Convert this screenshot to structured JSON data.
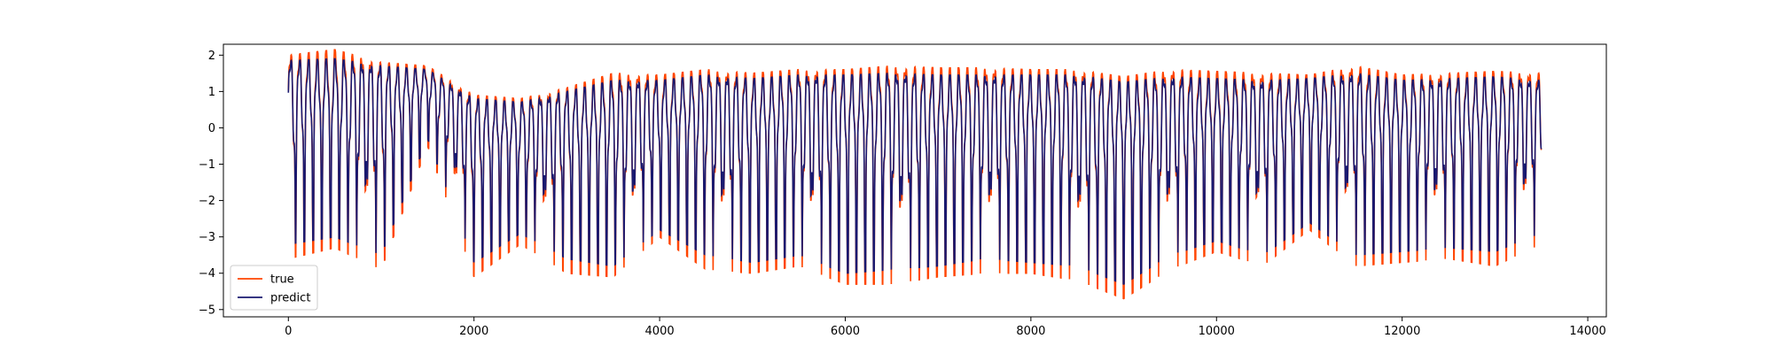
{
  "chart_data": {
    "type": "line",
    "title": "",
    "xlabel": "",
    "ylabel": "",
    "xlim": [
      -700,
      14200
    ],
    "ylim": [
      -5.2,
      2.3
    ],
    "x_ticks": [
      0,
      2000,
      4000,
      6000,
      8000,
      10000,
      12000,
      14000
    ],
    "x_tick_labels": [
      "0",
      "2000",
      "4000",
      "6000",
      "8000",
      "10000",
      "12000",
      "14000"
    ],
    "y_ticks": [
      2,
      1,
      0,
      -1,
      -2,
      -3,
      -4,
      -5
    ],
    "y_tick_labels": [
      "2",
      "1",
      "0",
      "−1",
      "−2",
      "−3",
      "−4",
      "−5"
    ],
    "grid": false,
    "legend_position": "lower-left",
    "series_approximation": "each series is summarised by the lower (min) and upper (max) envelope of its values over consecutive x-segments, read from the figure",
    "x": [
      0,
      500,
      1000,
      1500,
      2000,
      2500,
      3000,
      3500,
      4000,
      4500,
      5000,
      5500,
      6000,
      6500,
      7000,
      7500,
      8000,
      8500,
      9000,
      9500,
      10000,
      10500,
      11000,
      11500,
      12000,
      12500,
      13000,
      13500
    ],
    "series": [
      {
        "name": "true",
        "color": "#ff4500",
        "lower": [
          -3.6,
          -3.3,
          -3.9,
          -0.5,
          -4.1,
          -3.2,
          -4.0,
          -4.1,
          -3.0,
          -3.9,
          -4.0,
          -3.8,
          -4.3,
          -4.3,
          -4.1,
          -4.0,
          -4.0,
          -4.2,
          -4.7,
          -3.9,
          -3.4,
          -3.8,
          -2.8,
          -3.8,
          -3.7,
          -3.6,
          -3.8,
          -3.2
        ],
        "upper": [
          2.0,
          2.15,
          1.8,
          1.7,
          0.9,
          0.8,
          1.1,
          1.5,
          1.45,
          1.6,
          1.5,
          1.6,
          1.6,
          1.7,
          1.65,
          1.65,
          1.6,
          1.6,
          1.4,
          1.6,
          1.55,
          1.5,
          1.45,
          1.7,
          1.45,
          1.5,
          1.55,
          1.5
        ]
      },
      {
        "name": "predict",
        "color": "#191970",
        "lower": [
          -3.2,
          -3.0,
          -3.5,
          -0.3,
          -3.7,
          -2.9,
          -3.6,
          -3.8,
          -2.8,
          -3.5,
          -3.7,
          -3.5,
          -4.0,
          -3.9,
          -3.8,
          -3.6,
          -3.7,
          -3.8,
          -4.3,
          -3.5,
          -3.1,
          -3.5,
          -2.6,
          -3.5,
          -3.4,
          -3.3,
          -3.4,
          -2.9
        ],
        "upper": [
          1.85,
          1.9,
          1.7,
          1.6,
          0.8,
          0.7,
          1.0,
          1.3,
          1.3,
          1.45,
          1.35,
          1.45,
          1.45,
          1.5,
          1.45,
          1.45,
          1.45,
          1.45,
          1.25,
          1.4,
          1.35,
          1.3,
          1.35,
          1.5,
          1.3,
          1.35,
          1.4,
          1.3
        ]
      }
    ]
  },
  "legend": {
    "items": [
      {
        "label": "true",
        "color": "#ff4500"
      },
      {
        "label": "predict",
        "color": "#191970"
      }
    ]
  }
}
